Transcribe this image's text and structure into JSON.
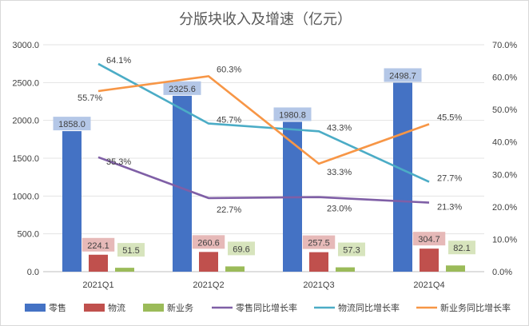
{
  "chart_data": {
    "type": "bar",
    "title": "分版块收入及增速（亿元）",
    "categories": [
      "2021Q1",
      "2021Q2",
      "2021Q3",
      "2021Q4"
    ],
    "y_left": {
      "ylim": [
        0,
        3000
      ],
      "ticks": [
        "0.0",
        "500.0",
        "1000.0",
        "1500.0",
        "2000.0",
        "2500.0",
        "3000.0"
      ]
    },
    "y_right": {
      "ylim": [
        0,
        70
      ],
      "ticks": [
        "0.0%",
        "10.0%",
        "20.0%",
        "30.0%",
        "40.0%",
        "50.0%",
        "60.0%",
        "70.0%"
      ]
    },
    "bar_series": [
      {
        "name": "零售",
        "color": "#4472C4",
        "label_bg": "#B4C7E7",
        "values": [
          1858.0,
          2325.6,
          1980.8,
          2498.7
        ],
        "labels": [
          "1858.0",
          "2325.6",
          "1980.8",
          "2498.7"
        ]
      },
      {
        "name": "物流",
        "color": "#C0504D",
        "label_bg": "#E6B9B8",
        "values": [
          224.1,
          260.6,
          257.5,
          304.7
        ],
        "labels": [
          "224.1",
          "260.6",
          "257.5",
          "304.7"
        ]
      },
      {
        "name": "新业务",
        "color": "#9BBB59",
        "label_bg": "#D7E4BD",
        "values": [
          51.5,
          69.6,
          57.3,
          82.1
        ],
        "labels": [
          "51.5",
          "69.6",
          "57.3",
          "82.1"
        ]
      }
    ],
    "line_series": [
      {
        "name": "零售同比增长率",
        "color": "#7F5FA6",
        "values": [
          35.3,
          22.7,
          23.0,
          21.3
        ],
        "labels": [
          "35.3%",
          "22.7%",
          "23.0%",
          "21.3%"
        ]
      },
      {
        "name": "物流同比增长率",
        "color": "#4BACC6",
        "values": [
          64.1,
          45.7,
          43.3,
          27.7
        ],
        "labels": [
          "64.1%",
          "45.7%",
          "43.3%",
          "27.7%"
        ]
      },
      {
        "name": "新业务同比增长率",
        "color": "#F79646",
        "values": [
          55.7,
          60.3,
          33.3,
          45.5
        ],
        "labels": [
          "55.7%",
          "60.3%",
          "33.3%",
          "45.5%"
        ]
      }
    ],
    "gridlines": true,
    "legend": "bottom"
  }
}
